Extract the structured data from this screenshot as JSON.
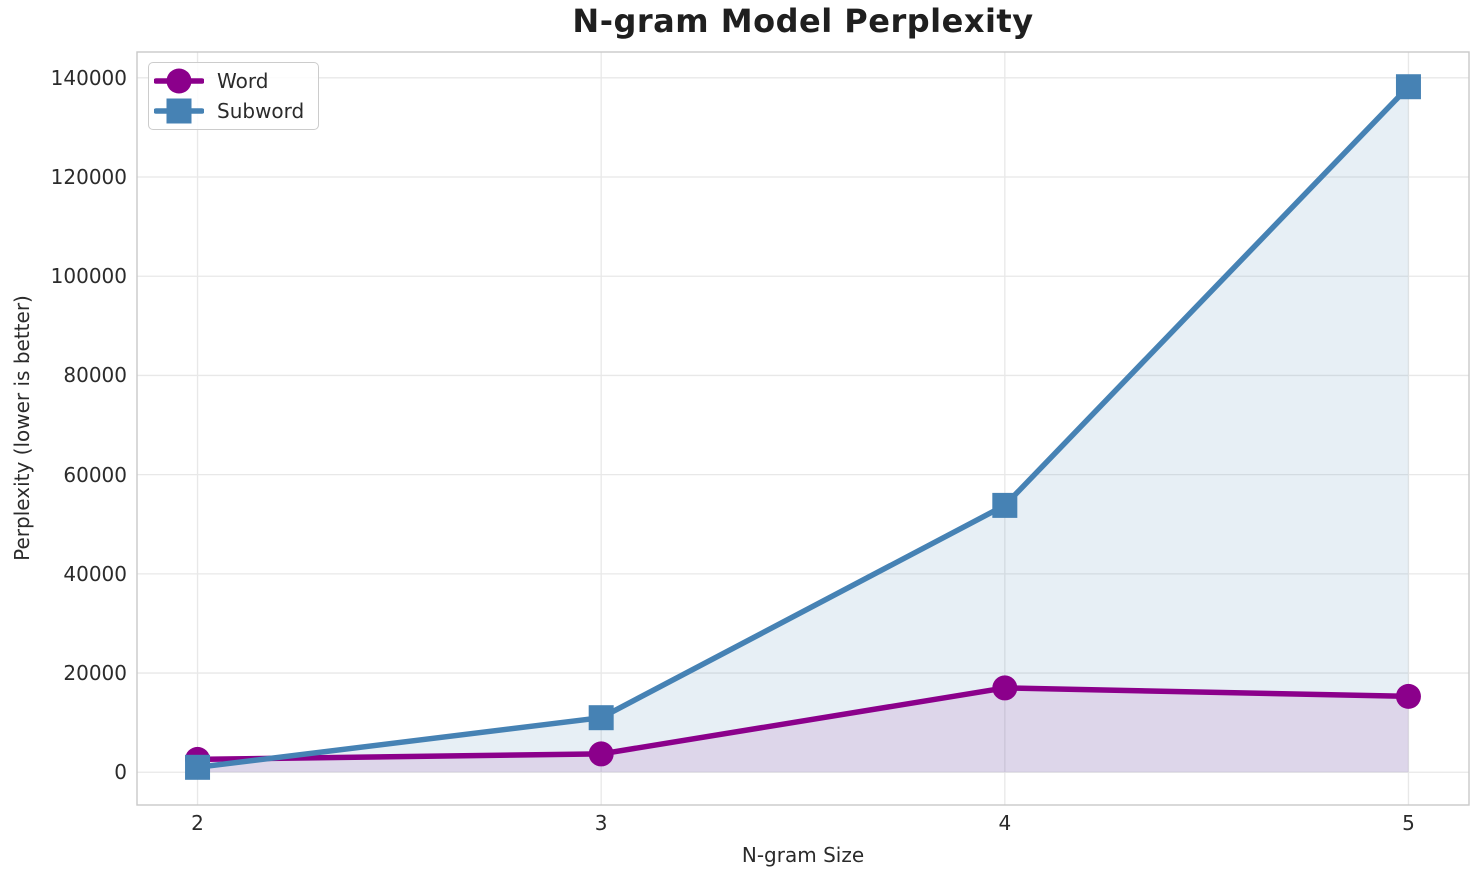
{
  "chart_data": {
    "type": "line",
    "title": "N-gram Model Perplexity",
    "xlabel": "N-gram Size",
    "ylabel": "Perplexity (lower is better)",
    "x": [
      2,
      3,
      4,
      5
    ],
    "xticks": [
      "2",
      "3",
      "4",
      "5"
    ],
    "yticks": [
      0,
      20000,
      40000,
      60000,
      80000,
      100000,
      120000,
      140000
    ],
    "xlim": [
      1.85,
      5.15
    ],
    "ylim": [
      -6600,
      145200
    ],
    "grid": true,
    "legend_position": "upper left",
    "area_baseline": 0,
    "series": [
      {
        "name": "Word",
        "marker": "circle",
        "color": "#8B008B",
        "fill_alpha": 0.1,
        "values": [
          2600,
          3700,
          17000,
          15300
        ]
      },
      {
        "name": "Subword",
        "marker": "square",
        "color": "#4682B4",
        "fill_alpha": 0.13,
        "values": [
          1000,
          11000,
          53800,
          138200
        ]
      }
    ],
    "style": {
      "grid_color": "#e8e8e8",
      "spine_color": "#c9c9c9",
      "background": "#ffffff"
    }
  }
}
